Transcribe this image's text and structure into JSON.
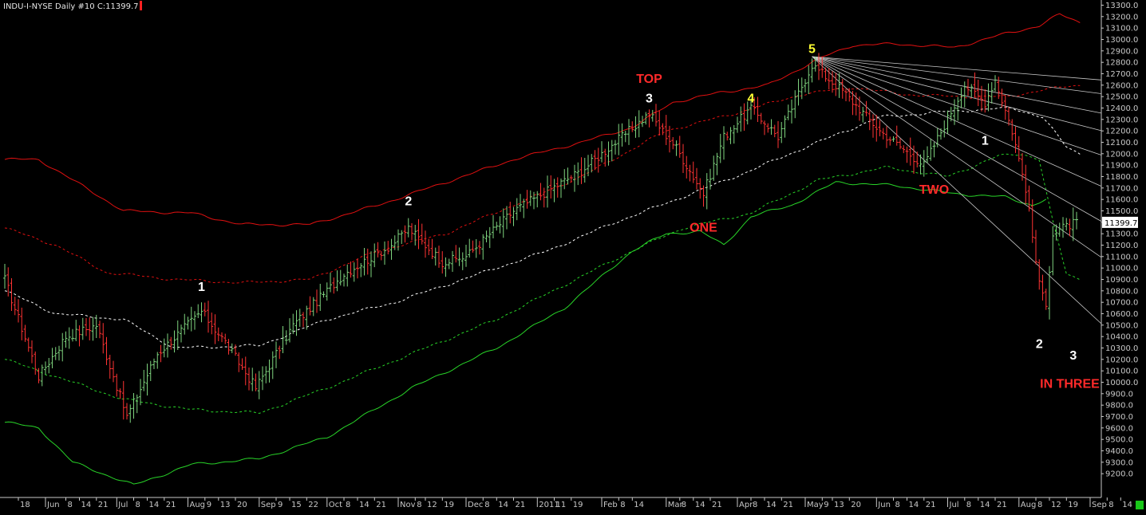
{
  "chart_data": {
    "type": "candlestick",
    "title": "INDU-I-NYSE  Daily  #10 C:11399.7",
    "symbol": "INDU-I-NYSE",
    "timeframe": "Daily",
    "last_close_label": "11399.7",
    "ylim": [
      9100,
      13300
    ],
    "y_ticks": [
      13300,
      13200,
      13100,
      13000,
      12900,
      12800,
      12700,
      12600,
      12500,
      12400,
      12300,
      12200,
      12100,
      12000,
      11900,
      11800,
      11700,
      11600,
      11500,
      11400,
      11300,
      11200,
      11100,
      11000,
      10900,
      10800,
      10700,
      10600,
      10500,
      10400,
      10300,
      10200,
      10100,
      10000,
      9900,
      9800,
      9700,
      9600,
      9500,
      9400,
      9300,
      9200
    ],
    "x_ticks": [
      {
        "label": "18",
        "ix": 4
      },
      {
        "label": "Jun",
        "ix": 12,
        "month": true
      },
      {
        "label": "8",
        "ix": 18
      },
      {
        "label": "14",
        "ix": 22
      },
      {
        "label": "21",
        "ix": 27
      },
      {
        "label": "Jul",
        "ix": 33,
        "month": true
      },
      {
        "label": "8",
        "ix": 38
      },
      {
        "label": "14",
        "ix": 42
      },
      {
        "label": "21",
        "ix": 47
      },
      {
        "label": "Aug",
        "ix": 54,
        "month": true
      },
      {
        "label": "9",
        "ix": 59
      },
      {
        "label": "13",
        "ix": 63
      },
      {
        "label": "20",
        "ix": 68
      },
      {
        "label": "Sep",
        "ix": 75,
        "month": true
      },
      {
        "label": "9",
        "ix": 80
      },
      {
        "label": "15",
        "ix": 84
      },
      {
        "label": "22",
        "ix": 89
      },
      {
        "label": "Oct",
        "ix": 95,
        "month": true
      },
      {
        "label": "8",
        "ix": 100
      },
      {
        "label": "14",
        "ix": 104
      },
      {
        "label": "21",
        "ix": 109
      },
      {
        "label": "Nov",
        "ix": 116,
        "month": true
      },
      {
        "label": "8",
        "ix": 121
      },
      {
        "label": "12",
        "ix": 124
      },
      {
        "label": "19",
        "ix": 129
      },
      {
        "label": "Dec",
        "ix": 136,
        "month": true
      },
      {
        "label": "8",
        "ix": 141
      },
      {
        "label": "14",
        "ix": 145
      },
      {
        "label": "21",
        "ix": 150
      },
      {
        "label": "2011",
        "ix": 157,
        "month": true
      },
      {
        "label": "11",
        "ix": 162
      },
      {
        "label": "19",
        "ix": 167
      },
      {
        "label": "Feb",
        "ix": 176,
        "month": true
      },
      {
        "label": "8",
        "ix": 181
      },
      {
        "label": "14",
        "ix": 185
      },
      {
        "label": "Mar",
        "ix": 195,
        "month": true
      },
      {
        "label": "8",
        "ix": 199
      },
      {
        "label": "14",
        "ix": 203
      },
      {
        "label": "21",
        "ix": 208
      },
      {
        "label": "Apr",
        "ix": 216,
        "month": true
      },
      {
        "label": "8",
        "ix": 220
      },
      {
        "label": "14",
        "ix": 224
      },
      {
        "label": "21",
        "ix": 229
      },
      {
        "label": "May",
        "ix": 236,
        "month": true
      },
      {
        "label": "9",
        "ix": 241
      },
      {
        "label": "13",
        "ix": 244
      },
      {
        "label": "20",
        "ix": 249
      },
      {
        "label": "Jun",
        "ix": 257,
        "month": true
      },
      {
        "label": "8",
        "ix": 262
      },
      {
        "label": "14",
        "ix": 266
      },
      {
        "label": "21",
        "ix": 271
      },
      {
        "label": "Jul",
        "ix": 278,
        "month": true
      },
      {
        "label": "8",
        "ix": 283
      },
      {
        "label": "14",
        "ix": 287
      },
      {
        "label": "21",
        "ix": 292
      },
      {
        "label": "Aug",
        "ix": 299,
        "month": true
      },
      {
        "label": "8",
        "ix": 304
      },
      {
        "label": "12",
        "ix": 308
      },
      {
        "label": "19",
        "ix": 313
      },
      {
        "label": "Sep",
        "ix": 320,
        "month": true
      },
      {
        "label": "8",
        "ix": 325
      },
      {
        "label": "14",
        "ix": 329
      }
    ],
    "bars_count": 317,
    "pivots": [
      {
        "ix": 0,
        "v": 10900
      },
      {
        "ix": 10,
        "v": 10050
      },
      {
        "ix": 18,
        "v": 10400
      },
      {
        "ix": 27,
        "v": 10500
      },
      {
        "ix": 36,
        "v": 9700
      },
      {
        "ix": 45,
        "v": 10250
      },
      {
        "ix": 58,
        "v": 10620
      },
      {
        "ix": 65,
        "v": 10350
      },
      {
        "ix": 74,
        "v": 9950
      },
      {
        "ix": 85,
        "v": 10500
      },
      {
        "ix": 100,
        "v": 10950
      },
      {
        "ix": 114,
        "v": 11200
      },
      {
        "ix": 119,
        "v": 11350
      },
      {
        "ix": 129,
        "v": 11050
      },
      {
        "ix": 136,
        "v": 11100
      },
      {
        "ix": 150,
        "v": 11500
      },
      {
        "ix": 170,
        "v": 11850
      },
      {
        "ix": 190,
        "v": 12350
      },
      {
        "ix": 198,
        "v": 12050
      },
      {
        "ix": 206,
        "v": 11650
      },
      {
        "ix": 212,
        "v": 12150
      },
      {
        "ix": 220,
        "v": 12400
      },
      {
        "ix": 228,
        "v": 12150
      },
      {
        "ix": 238,
        "v": 12780
      },
      {
        "ix": 247,
        "v": 12550
      },
      {
        "ix": 258,
        "v": 12200
      },
      {
        "ix": 271,
        "v": 11900
      },
      {
        "ix": 283,
        "v": 12600
      },
      {
        "ix": 289,
        "v": 12450
      },
      {
        "ix": 292,
        "v": 12650
      },
      {
        "ix": 297,
        "v": 12200
      },
      {
        "ix": 301,
        "v": 11700
      },
      {
        "ix": 305,
        "v": 10850
      },
      {
        "ix": 307,
        "v": 10700
      },
      {
        "ix": 309,
        "v": 11300
      },
      {
        "ix": 312,
        "v": 11350
      },
      {
        "ix": 316,
        "v": 11400
      }
    ],
    "bands": {
      "upper_outer": [
        [
          0,
          11950
        ],
        [
          10,
          11950
        ],
        [
          35,
          11500
        ],
        [
          55,
          11480
        ],
        [
          70,
          11380
        ],
        [
          90,
          11380
        ],
        [
          110,
          11550
        ],
        [
          130,
          11750
        ],
        [
          150,
          11950
        ],
        [
          170,
          12100
        ],
        [
          185,
          12230
        ],
        [
          197,
          12450
        ],
        [
          210,
          12530
        ],
        [
          225,
          12600
        ],
        [
          240,
          12830
        ],
        [
          250,
          12950
        ],
        [
          263,
          12960
        ],
        [
          280,
          12930
        ],
        [
          295,
          13050
        ],
        [
          305,
          13120
        ],
        [
          311,
          13220
        ],
        [
          317,
          13150
        ]
      ],
      "upper_inner": [
        [
          0,
          11350
        ],
        [
          15,
          11200
        ],
        [
          30,
          10960
        ],
        [
          50,
          10900
        ],
        [
          70,
          10870
        ],
        [
          90,
          10900
        ],
        [
          110,
          11150
        ],
        [
          130,
          11300
        ],
        [
          150,
          11550
        ],
        [
          170,
          11800
        ],
        [
          195,
          12200
        ],
        [
          215,
          12350
        ],
        [
          235,
          12520
        ],
        [
          250,
          12580
        ],
        [
          265,
          12520
        ],
        [
          280,
          12500
        ],
        [
          296,
          12500
        ],
        [
          306,
          12560
        ],
        [
          317,
          12600
        ]
      ],
      "mid": [
        [
          0,
          10800
        ],
        [
          15,
          10600
        ],
        [
          35,
          10550
        ],
        [
          50,
          10300
        ],
        [
          75,
          10320
        ],
        [
          95,
          10550
        ],
        [
          115,
          10700
        ],
        [
          140,
          10950
        ],
        [
          160,
          11150
        ],
        [
          180,
          11400
        ],
        [
          198,
          11600
        ],
        [
          218,
          11830
        ],
        [
          238,
          12080
        ],
        [
          258,
          12320
        ],
        [
          278,
          12370
        ],
        [
          297,
          12400
        ],
        [
          306,
          12320
        ],
        [
          313,
          12060
        ],
        [
          317,
          12000
        ]
      ],
      "lower_inner": [
        [
          0,
          10200
        ],
        [
          15,
          10050
        ],
        [
          35,
          9850
        ],
        [
          55,
          9760
        ],
        [
          75,
          9730
        ],
        [
          95,
          9950
        ],
        [
          120,
          10250
        ],
        [
          145,
          10550
        ],
        [
          165,
          10850
        ],
        [
          185,
          11150
        ],
        [
          200,
          11350
        ],
        [
          220,
          11480
        ],
        [
          240,
          11770
        ],
        [
          260,
          11880
        ],
        [
          278,
          11800
        ],
        [
          293,
          11980
        ],
        [
          300,
          12000
        ],
        [
          305,
          11950
        ],
        [
          309,
          11400
        ],
        [
          313,
          10950
        ],
        [
          317,
          10900
        ]
      ],
      "lower_outer": [
        [
          0,
          9650
        ],
        [
          10,
          9600
        ],
        [
          20,
          9300
        ],
        [
          38,
          9100
        ],
        [
          55,
          9280
        ],
        [
          75,
          9330
        ],
        [
          95,
          9520
        ],
        [
          120,
          9950
        ],
        [
          145,
          10300
        ],
        [
          165,
          10650
        ],
        [
          185,
          11150
        ],
        [
          195,
          11300
        ],
        [
          205,
          11320
        ],
        [
          212,
          11200
        ],
        [
          220,
          11450
        ],
        [
          232,
          11550
        ],
        [
          245,
          11750
        ],
        [
          263,
          11720
        ],
        [
          280,
          11650
        ],
        [
          295,
          11620
        ],
        [
          303,
          11550
        ],
        [
          307,
          11600
        ]
      ]
    },
    "fan": {
      "origin_ix": 238,
      "origin_v": 12850,
      "slopes": [
        -2.4,
        -3.8,
        -5.8,
        -7.6,
        -10.1,
        -13.3,
        -16.9,
        -20.6,
        -27.4
      ]
    },
    "annotations": [
      {
        "text": "1",
        "ix": 58,
        "v": 10800,
        "color": "#ffffff"
      },
      {
        "text": "2",
        "ix": 119,
        "v": 11550,
        "color": "#ffffff"
      },
      {
        "text": "TOP",
        "ix": 190,
        "v": 12620,
        "color": "#ff2a2a"
      },
      {
        "text": "3",
        "ix": 190,
        "v": 12450,
        "color": "#ffffff"
      },
      {
        "text": "ONE",
        "ix": 206,
        "v": 11320,
        "color": "#ff2a2a"
      },
      {
        "text": "4",
        "ix": 220,
        "v": 12450,
        "color": "#ffff33"
      },
      {
        "text": "5",
        "ix": 238,
        "v": 12880,
        "color": "#ffff33"
      },
      {
        "text": "TWO",
        "ix": 274,
        "v": 11650,
        "color": "#ff2a2a"
      },
      {
        "text": "1",
        "ix": 289,
        "v": 12080,
        "color": "#ffffff"
      },
      {
        "text": "2",
        "ix": 305,
        "v": 10300,
        "color": "#ffffff"
      },
      {
        "text": "3",
        "ix": 315,
        "v": 10200,
        "color": "#ffffff"
      },
      {
        "text": "IN THREE",
        "ix": 314,
        "v": 9950,
        "color": "#ff2a2a"
      }
    ],
    "colors": {
      "background": "#000000",
      "up_bar": "#7ed37e",
      "down_bar": "#ff3333",
      "band_upper": "#e01010",
      "band_mid": "#ffffff",
      "band_lower": "#28d428",
      "fan": "#c8c8c8",
      "axis": "#c8c8c8",
      "last_label_bg": "#ffffff",
      "last_label_fg": "#000000"
    }
  }
}
